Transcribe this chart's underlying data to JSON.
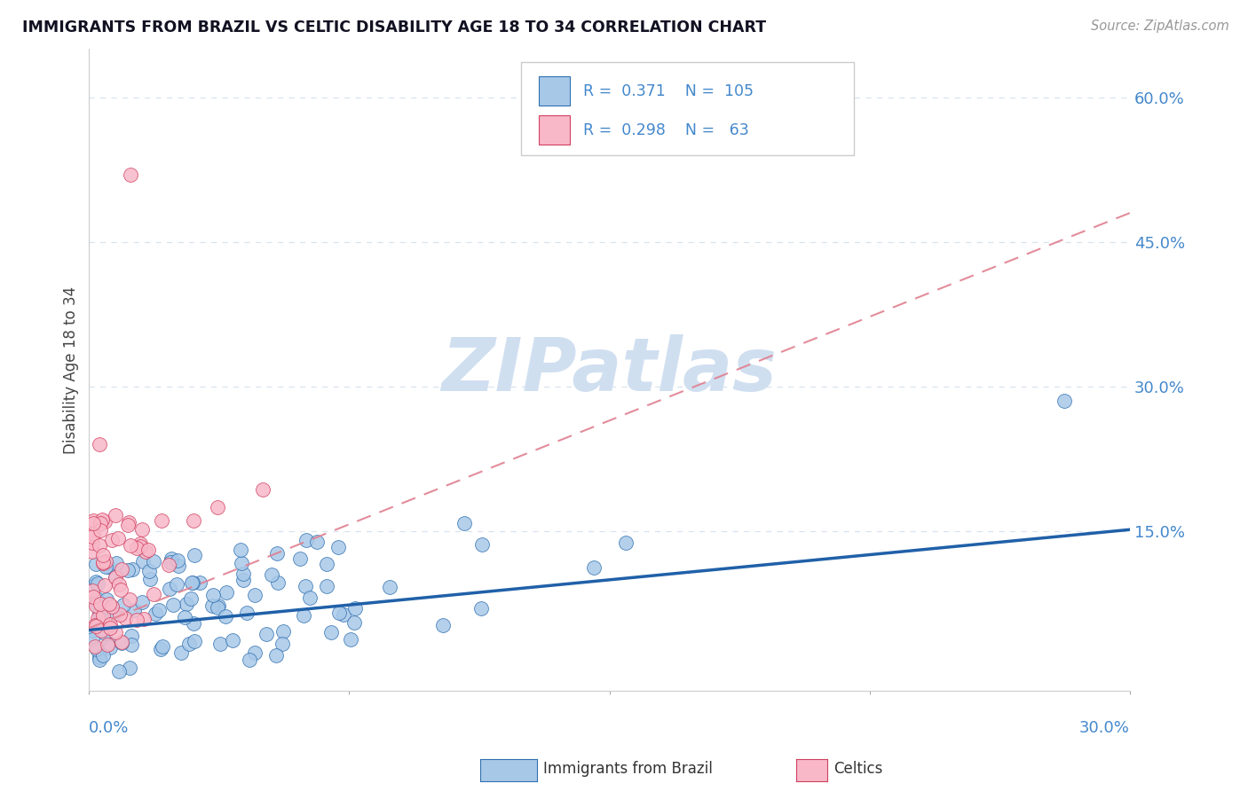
{
  "title": "IMMIGRANTS FROM BRAZIL VS CELTIC DISABILITY AGE 18 TO 34 CORRELATION CHART",
  "source": "Source: ZipAtlas.com",
  "ylabel": "Disability Age 18 to 34",
  "xlim": [
    0.0,
    0.3
  ],
  "ylim": [
    -0.015,
    0.65
  ],
  "brazil_R": 0.371,
  "brazil_N": 105,
  "celtics_R": 0.298,
  "celtics_N": 63,
  "brazil_color": "#a8c8e8",
  "celtics_color": "#f8b8c8",
  "brazil_edge_color": "#3070b0",
  "celtics_edge_color": "#d04060",
  "brazil_line_color": "#2060a8",
  "celtics_line_color": "#e08090",
  "axis_color": "#4488cc",
  "legend_R_color": "#4488cc",
  "watermark_color": "#d0dff0",
  "grid_color": "#d8e4f0",
  "background_color": "#ffffff",
  "title_color": "#111122",
  "brazil_line_x0": 0.0,
  "brazil_line_y0": 0.048,
  "brazil_line_x1": 0.3,
  "brazil_line_y1": 0.152,
  "celtics_line_x0": 0.0,
  "celtics_line_y0": 0.05,
  "celtics_line_x1": 0.12,
  "celtics_line_y1": 0.23,
  "y_ticks": [
    0.0,
    0.15,
    0.3,
    0.45,
    0.6
  ],
  "y_tick_labels": [
    "",
    "15.0%",
    "30.0%",
    "45.0%",
    "60.0%"
  ]
}
